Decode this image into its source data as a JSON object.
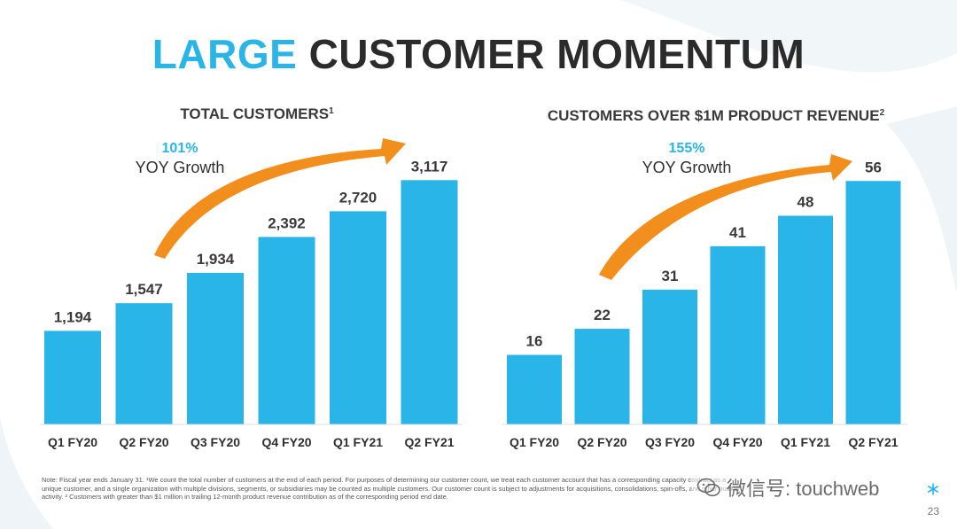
{
  "slide": {
    "title_accent": "LARGE",
    "title_rest": "CUSTOMER MOMENTUM",
    "page_number": "23",
    "footnote": "Note: Fiscal year ends January 31. ¹We count the total number of customers at the end of each period. For purposes of determining our customer count, we treat each customer account that has a corresponding capacity contract as a unique customer, and a single organization with multiple divisions, segments, or subsidiaries may be counted as multiple customers. Our customer count is subject to adjustments for acquisitions, consolidations, spin-offs, and other market activity. ² Customers with greater than $1 million in trailing 12-month product revenue contribution as of the corresponding period end date.",
    "watermark": "微信号: touchweb"
  },
  "colors": {
    "accent": "#29b5e8",
    "bar": "#29b5e8",
    "arrow": "#f28e1c",
    "title_dark": "#2b2b2b",
    "bg_shape": "#eef4f7"
  },
  "chart_data": [
    {
      "type": "bar",
      "title": "TOTAL CUSTOMERS",
      "title_sup": "1",
      "growth_pct": "101%",
      "growth_label": "YOY Growth",
      "categories": [
        "Q1 FY20",
        "Q2 FY20",
        "Q3 FY20",
        "Q4 FY20",
        "Q1 FY21",
        "Q2 FY21"
      ],
      "values": [
        1194,
        1547,
        1934,
        2392,
        2720,
        3117
      ],
      "value_labels": [
        "1,194",
        "1,547",
        "1,934",
        "2,392",
        "2,720",
        "3,117"
      ],
      "ylim": [
        0,
        3550
      ],
      "grid": false,
      "legend": "none"
    },
    {
      "type": "bar",
      "title": "CUSTOMERS OVER $1M PRODUCT REVENUE",
      "title_sup": "2",
      "growth_pct": "155%",
      "growth_label": "YOY Growth",
      "categories": [
        "Q1 FY20",
        "Q2 FY20",
        "Q3 FY20",
        "Q4 FY20",
        "Q1 FY21",
        "Q2 FY21"
      ],
      "values": [
        16,
        22,
        31,
        41,
        48,
        56
      ],
      "value_labels": [
        "16",
        "22",
        "31",
        "41",
        "48",
        "56"
      ],
      "ylim": [
        0,
        64
      ],
      "grid": false,
      "legend": "none"
    }
  ]
}
